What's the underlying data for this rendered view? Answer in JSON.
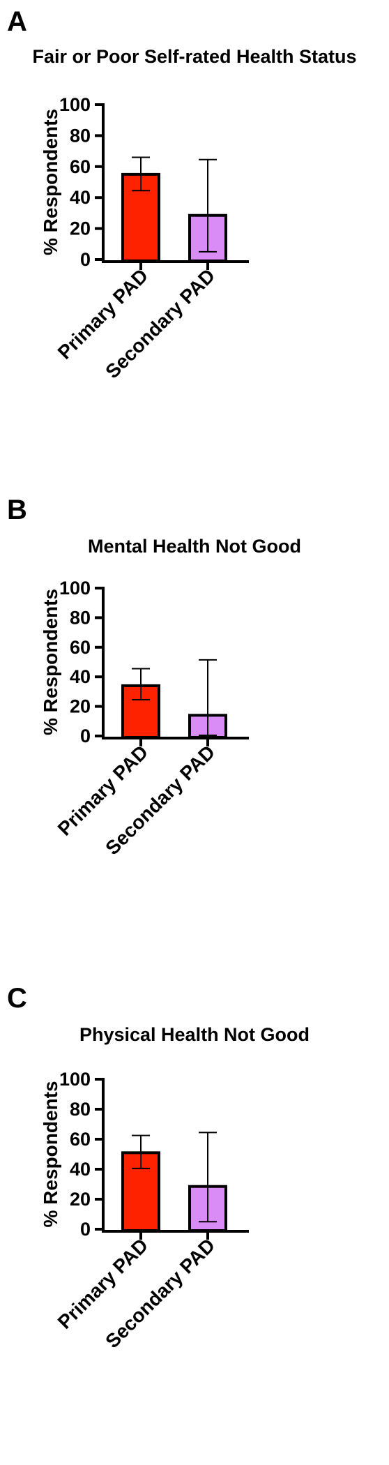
{
  "colors": {
    "primary": "#ff2200",
    "secondary": "#d98cf5",
    "axis": "#000000"
  },
  "chart_data": [
    {
      "type": "bar",
      "panel_label": "A",
      "title": "Fair or Poor Self-rated Health Status",
      "ylabel": "% Respondents",
      "xlabel": "",
      "categories": [
        "Primary PAD",
        "Secondary PAD"
      ],
      "values": [
        55,
        28.5
      ],
      "error_low": [
        44.5,
        5
      ],
      "error_high": [
        66,
        64.5
      ],
      "ylim": [
        0,
        100
      ],
      "yticks": [
        0,
        20,
        40,
        60,
        80,
        100
      ],
      "grid": false
    },
    {
      "type": "bar",
      "panel_label": "B",
      "title": "Mental Health Not Good",
      "ylabel": "% Respondents",
      "xlabel": "",
      "categories": [
        "Primary PAD",
        "Secondary PAD"
      ],
      "values": [
        34,
        14
      ],
      "error_low": [
        24.5,
        0.5
      ],
      "error_high": [
        45.5,
        51.5
      ],
      "ylim": [
        0,
        100
      ],
      "yticks": [
        0,
        20,
        40,
        60,
        80,
        100
      ],
      "grid": false
    },
    {
      "type": "bar",
      "panel_label": "C",
      "title": "Physical Health Not Good",
      "ylabel": "% Respondents",
      "xlabel": "",
      "categories": [
        "Primary PAD",
        "Secondary PAD"
      ],
      "values": [
        51,
        28.5
      ],
      "error_low": [
        40.5,
        5
      ],
      "error_high": [
        62.5,
        64.5
      ],
      "ylim": [
        0,
        100
      ],
      "yticks": [
        0,
        20,
        40,
        60,
        80,
        100
      ],
      "grid": false
    }
  ]
}
